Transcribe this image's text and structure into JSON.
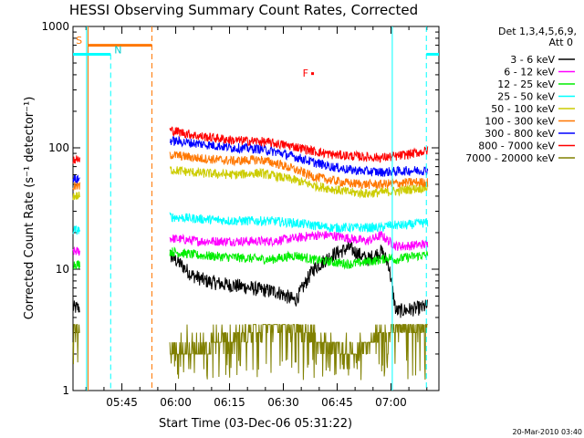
{
  "chart_data": {
    "type": "line",
    "title": "HESSI Observing Summary Count Rates, Corrected",
    "xlabel": "Start Time (03-Dec-06 05:31:22)",
    "ylabel": "Corrected Count Rate (s⁻¹ detector⁻¹)",
    "yscale": "log",
    "ylim": [
      1,
      1000
    ],
    "xlim_minutes": [
      0,
      102
    ],
    "xticks": [
      "05:45",
      "06:00",
      "06:15",
      "06:30",
      "06:45",
      "07:00"
    ],
    "yticks": [
      "1",
      "10",
      "100",
      "1000"
    ],
    "timestamp": "20-Mar-2010 03:40",
    "legend": {
      "header": [
        "Det 1,3,4,5,6,9,",
        "Att 0"
      ],
      "placement": "right"
    },
    "annotations": {
      "S": "S",
      "N": "N",
      "F": "F"
    },
    "series": [
      {
        "name": "3 - 6 keV",
        "color": "#000000",
        "x": [
          0,
          2,
          27,
          30,
          33,
          37,
          42,
          47,
          52,
          57,
          62,
          67,
          72,
          77,
          82,
          86,
          88,
          90,
          93,
          97,
          99
        ],
        "values": [
          4.8,
          4.8,
          13,
          11,
          9,
          8,
          7.5,
          7.2,
          6.8,
          6.5,
          5.5,
          10,
          13,
          15,
          12,
          14,
          11,
          4.5,
          4.6,
          4.8,
          5.0
        ]
      },
      {
        "name": "6 - 12 keV",
        "color": "#ff00ff",
        "x": [
          0,
          2,
          27,
          35,
          45,
          55,
          62,
          67,
          72,
          77,
          82,
          86,
          88,
          90,
          93,
          97,
          99
        ],
        "values": [
          14,
          14,
          18,
          17,
          17,
          17,
          18,
          19,
          19,
          18,
          17,
          19,
          17,
          15.5,
          15.5,
          16,
          16
        ]
      },
      {
        "name": "12 - 25 keV",
        "color": "#00ee00",
        "x": [
          0,
          2,
          27,
          35,
          45,
          55,
          62,
          67,
          72,
          77,
          82,
          86,
          88,
          90,
          93,
          97,
          99
        ],
        "values": [
          11,
          11,
          14,
          13,
          12.5,
          12,
          13,
          12,
          11.5,
          11,
          11.5,
          12,
          12.5,
          12,
          12.5,
          13,
          13
        ]
      },
      {
        "name": "25 - 50 keV",
        "color": "#00ffff",
        "x": [
          0,
          2,
          27,
          35,
          45,
          55,
          62,
          67,
          72,
          77,
          82,
          86,
          88,
          90,
          93,
          97,
          99
        ],
        "values": [
          21,
          21,
          27,
          26,
          25,
          25,
          24,
          23,
          22,
          22,
          22,
          22,
          23,
          23,
          23,
          24,
          24
        ]
      },
      {
        "name": "50 - 100 keV",
        "color": "#cccc00",
        "x": [
          0,
          2,
          27,
          35,
          45,
          52,
          57,
          62,
          67,
          72,
          77,
          82,
          86,
          90,
          95,
          99
        ],
        "values": [
          40,
          40,
          66,
          62,
          60,
          62,
          58,
          54,
          49,
          46,
          43,
          42,
          43,
          44,
          46,
          47
        ]
      },
      {
        "name": "100 - 300 keV",
        "color": "#ff7700",
        "x": [
          0,
          2,
          27,
          35,
          45,
          52,
          57,
          62,
          67,
          72,
          77,
          82,
          86,
          90,
          95,
          99
        ],
        "values": [
          48,
          48,
          88,
          82,
          78,
          80,
          74,
          66,
          58,
          54,
          51,
          50,
          50,
          51,
          52,
          52
        ]
      },
      {
        "name": "300 - 800 keV",
        "color": "#0000ff",
        "x": [
          0,
          2,
          27,
          35,
          45,
          52,
          57,
          62,
          67,
          72,
          77,
          82,
          86,
          90,
          95,
          99
        ],
        "values": [
          55,
          55,
          115,
          108,
          100,
          98,
          92,
          84,
          76,
          70,
          66,
          64,
          63,
          64,
          65,
          65
        ]
      },
      {
        "name": "800 - 7000 keV",
        "color": "#ff0000",
        "x": [
          0,
          2,
          27,
          35,
          45,
          52,
          57,
          62,
          67,
          72,
          77,
          82,
          86,
          90,
          95,
          99
        ],
        "values": [
          80,
          80,
          140,
          125,
          115,
          113,
          108,
          102,
          94,
          88,
          86,
          84,
          83,
          85,
          90,
          95
        ]
      },
      {
        "name": "7000 - 20000 keV",
        "color": "#808000",
        "x": [
          0,
          2,
          27,
          35,
          45,
          52,
          57,
          62,
          67,
          72,
          77,
          82,
          86,
          88,
          90,
          93,
          97,
          99
        ],
        "values": [
          3,
          3,
          2,
          2,
          2.5,
          3,
          3.5,
          3,
          2.5,
          2,
          1.8,
          2,
          3,
          2.5,
          3.5,
          3,
          3.5,
          3.5
        ]
      }
    ]
  }
}
